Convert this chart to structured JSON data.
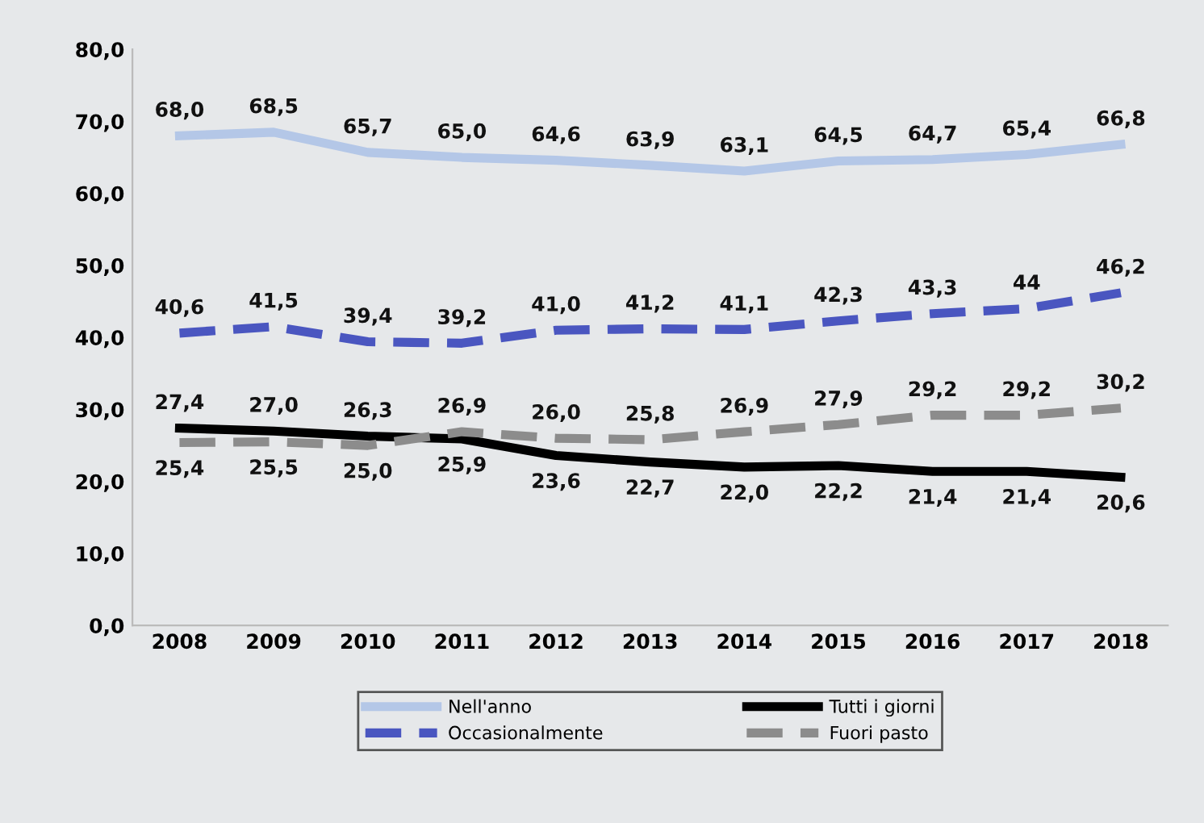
{
  "chart_data": {
    "type": "line",
    "categories": [
      "2008",
      "2009",
      "2010",
      "2011",
      "2012",
      "2013",
      "2014",
      "2015",
      "2016",
      "2017",
      "2018"
    ],
    "series": [
      {
        "name": "Nell'anno",
        "color": "#b4c7e7",
        "line_style": "solid",
        "values": [
          68.0,
          68.5,
          65.7,
          65.0,
          64.6,
          63.9,
          63.1,
          64.5,
          64.7,
          65.4,
          66.8
        ],
        "value_labels": [
          "68,0",
          "68,5",
          "65,7",
          "65,0",
          "64,6",
          "63,9",
          "63,1",
          "64,5",
          "64,7",
          "65,4",
          "66,8"
        ]
      },
      {
        "name": "Occasionalmente",
        "color": "#4a56c0",
        "line_style": "dashed",
        "values": [
          40.6,
          41.5,
          39.4,
          39.2,
          41.0,
          41.2,
          41.1,
          42.3,
          43.3,
          44,
          46.2
        ],
        "value_labels": [
          "40,6",
          "41,5",
          "39,4",
          "39,2",
          "41,0",
          "41,2",
          "41,1",
          "42,3",
          "43,3",
          "44",
          "46,2"
        ]
      },
      {
        "name": "Tutti i giorni",
        "color": "#000000",
        "line_style": "solid",
        "values": [
          27.4,
          27.0,
          26.3,
          25.9,
          23.6,
          22.7,
          22.0,
          22.2,
          21.4,
          21.4,
          20.6
        ],
        "value_labels": [
          "27,4",
          "27,0",
          "26,3",
          "25,9",
          "23,6",
          "22,7",
          "22,0",
          "22,2",
          "21,4",
          "21,4",
          "20,6"
        ]
      },
      {
        "name": "Fuori pasto",
        "color": "#8c8c8c",
        "line_style": "dashed",
        "values": [
          25.4,
          25.5,
          25.0,
          26.9,
          26.0,
          25.8,
          26.9,
          27.9,
          29.2,
          29.2,
          30.2
        ],
        "value_labels": [
          "25,4",
          "25,5",
          "25,0",
          "26,9",
          "26,0",
          "25,8",
          "26,9",
          "27,9",
          "29,2",
          "29,2",
          "30,2"
        ]
      }
    ],
    "ylim": [
      0,
      80
    ],
    "yticks": [
      {
        "value": 0,
        "label": "0,0"
      },
      {
        "value": 10,
        "label": "10,0"
      },
      {
        "value": 20,
        "label": "20,0"
      },
      {
        "value": 30,
        "label": "30,0"
      },
      {
        "value": 40,
        "label": "40,0"
      },
      {
        "value": 50,
        "label": "50,0"
      },
      {
        "value": 60,
        "label": "60,0"
      },
      {
        "value": 70,
        "label": "70,0"
      },
      {
        "value": 80,
        "label": "80,0"
      }
    ],
    "grid": false,
    "legend": "bottom",
    "marker": "none"
  }
}
